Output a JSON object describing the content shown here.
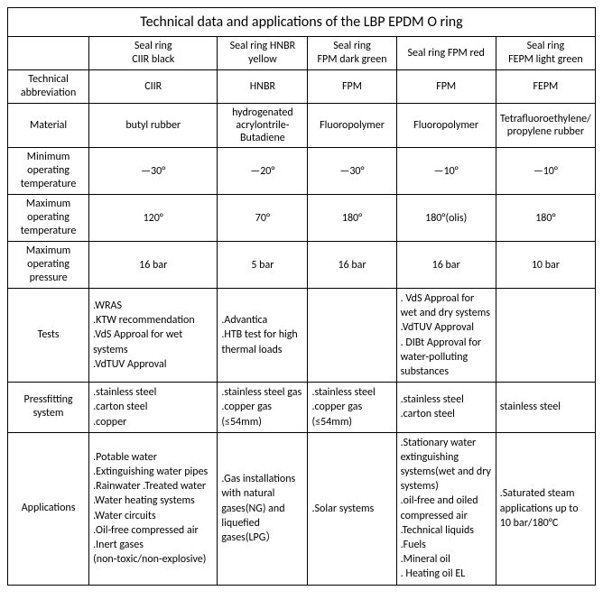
{
  "title": "Technical data and applications of the LBP EPDM O ring",
  "columns": [
    {
      "line1": "Seal ring",
      "line2": "CIIR black"
    },
    {
      "line1": "Seal ring HNBR",
      "line2": "yellow"
    },
    {
      "line1": "Seal ring",
      "line2": "FPM dark green"
    },
    {
      "line1": "Seal ring   FPM red",
      "line2": ""
    },
    {
      "line1": "Seal ring",
      "line2": "FEPM light green"
    }
  ],
  "rows": [
    {
      "label": "Technical abbreviation",
      "align": "center",
      "cells": [
        "CIIR",
        "HNBR",
        "FPM",
        "FPM",
        "FEPM"
      ]
    },
    {
      "label": "Material",
      "align": "center",
      "cells": [
        "butyl rubber",
        "hydrogenated acrylontrile-Butadiene",
        "Fluoropolymer",
        "Fluoropolymer",
        "Tetrafluoroethylene/propylene rubber"
      ]
    },
    {
      "label": "Minimum operating temperature",
      "align": "center",
      "cells": [
        "—30°",
        "—20°",
        "—30°",
        "—10°",
        "—10°"
      ]
    },
    {
      "label": "Maximum operating temperature",
      "align": "center",
      "cells": [
        "120°",
        "70°",
        "180°",
        "180°(olis)",
        "180°"
      ]
    },
    {
      "label": "Maximum operating pressure",
      "align": "center",
      "cells": [
        "16 bar",
        "5 bar",
        "16 bar",
        "16 bar",
        "10 bar"
      ]
    },
    {
      "label": "Tests",
      "align": "left",
      "multiline": true,
      "cells": [
        ".WRAS\n.KTW recommendation\n.VdS Approal for wet systems\n.VdTUV Approval",
        ".Advantica\n.HTB test for high thermal loads",
        "",
        ". VdS Approal for wet and dry systems\n.VdTUV Approval\n. DIBt Approval for water-polluting substances",
        ""
      ]
    },
    {
      "label": "Pressfitting system",
      "align": "left",
      "multiline": true,
      "cells": [
        ".stainless steel\n.carton steel\n.copper",
        ".stainless steel gas\n.copper gas (≤54mm)",
        ".stainless steel\n.copper gas (≤54mm)",
        ".stainless steel\n.carton steel",
        "stainless steel"
      ]
    },
    {
      "label": "Applications",
      "align": "left",
      "multiline": true,
      "cells": [
        ".Potable water\n.Extinguishing water pipes\n.Rainwater  .Treated water\n.Water heating systems\n.Water circuits\n.Oil-free compressed air\n.Inert gases\n(non-toxic/non-explosive)",
        ".Gas installations with natural gases(NG) and liquefied gases(LPG）",
        ".Solar systems",
        ".Stationary water extinguishing systems(wet and dry systems)\n.oil-free and oiled compressed air\n.Technical liquids\n.Fuels\n.Mineral oil\n. Heating oil EL",
        ".Saturated steam applications up to 10 bar/180°C"
      ]
    }
  ]
}
